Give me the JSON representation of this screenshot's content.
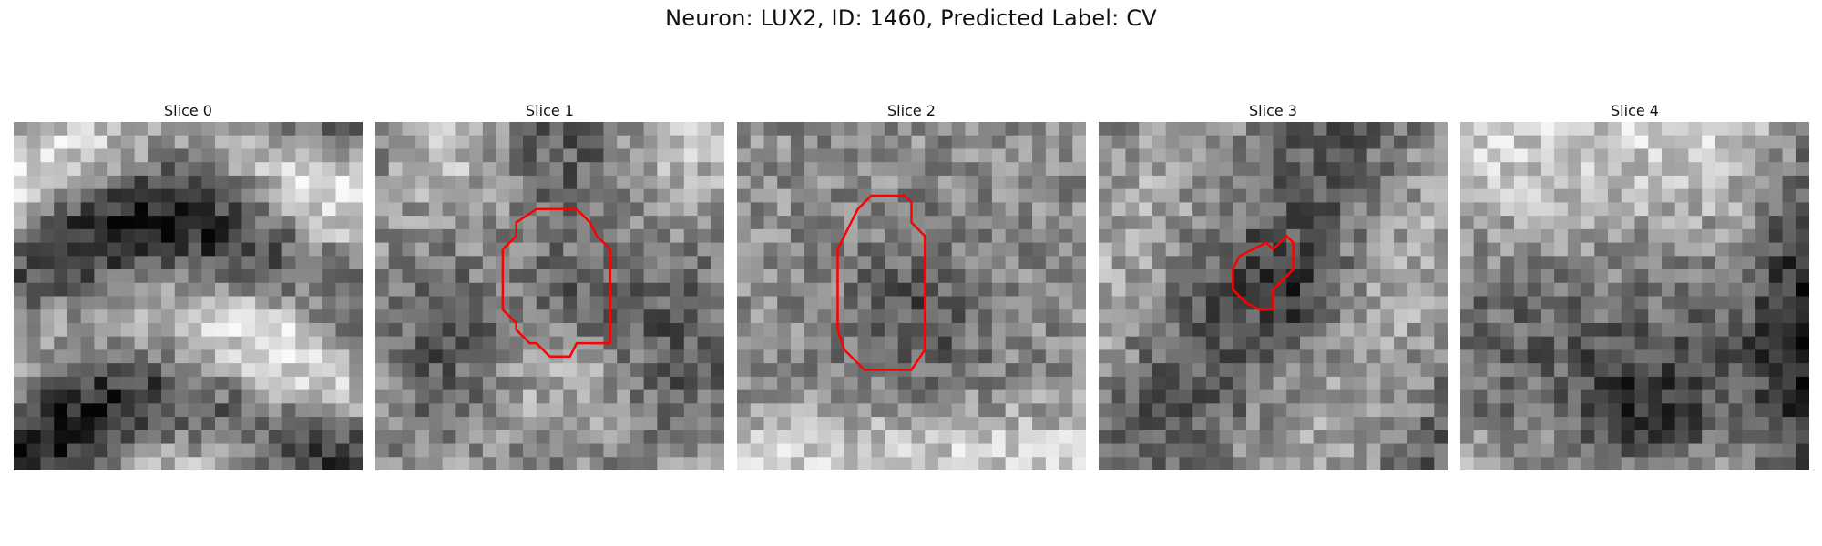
{
  "figure": {
    "title": "Neuron: LUX2, ID: 1460, Predicted Label: CV"
  },
  "panels": [
    {
      "title": "Slice 0",
      "has_contour": false,
      "seed": 11,
      "pattern": "bands"
    },
    {
      "title": "Slice 1",
      "has_contour": true,
      "seed": 23,
      "pattern": "dark-center"
    },
    {
      "title": "Slice 2",
      "has_contour": true,
      "seed": 37,
      "pattern": "dark-center-large"
    },
    {
      "title": "Slice 3",
      "has_contour": true,
      "seed": 53,
      "pattern": "noisy"
    },
    {
      "title": "Slice 4",
      "has_contour": false,
      "seed": 71,
      "pattern": "bright-top"
    }
  ],
  "style": {
    "contour_color": "#ff0000"
  }
}
